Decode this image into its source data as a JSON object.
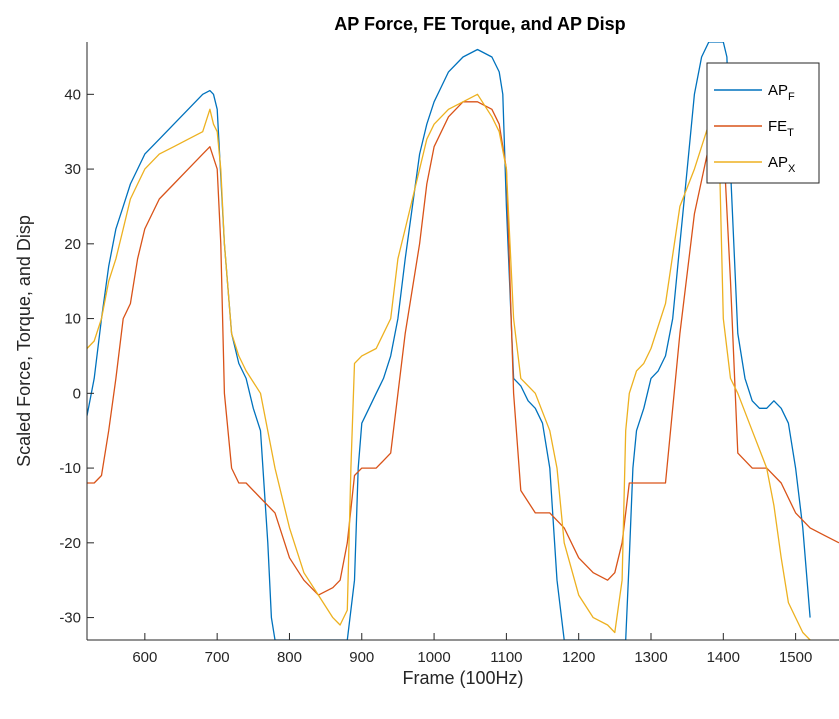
{
  "chart_data": {
    "type": "line",
    "title": "AP Force, FE Torque, and AP Disp",
    "xlabel": "Frame (100Hz)",
    "ylabel": "Scaled Force, Torque, and Disp",
    "xlim": [
      520,
      1560
    ],
    "ylim": [
      -33,
      47
    ],
    "xticks": [
      600,
      700,
      800,
      900,
      1000,
      1100,
      1200,
      1300,
      1400,
      1500
    ],
    "yticks": [
      -30,
      -20,
      -10,
      0,
      10,
      20,
      30,
      40
    ],
    "grid": false,
    "legend_position": "top-right",
    "series": [
      {
        "name": "AP",
        "subscript": "F",
        "color": "#0072BD",
        "x": [
          520,
          530,
          540,
          550,
          560,
          570,
          580,
          590,
          600,
          620,
          640,
          660,
          680,
          690,
          695,
          700,
          710,
          720,
          730,
          740,
          750,
          760,
          770,
          775,
          780,
          880,
          890,
          895,
          900,
          910,
          920,
          930,
          940,
          950,
          960,
          970,
          980,
          990,
          1000,
          1010,
          1020,
          1040,
          1060,
          1080,
          1090,
          1095,
          1100,
          1110,
          1120,
          1130,
          1140,
          1150,
          1160,
          1170,
          1180,
          1265,
          1270,
          1275,
          1280,
          1290,
          1300,
          1310,
          1320,
          1330,
          1340,
          1350,
          1360,
          1370,
          1380,
          1400,
          1405,
          1410,
          1420,
          1430,
          1440,
          1450,
          1460,
          1470,
          1480,
          1490,
          1500,
          1510,
          1520
        ],
        "y": [
          -3,
          2,
          10,
          17,
          22,
          25,
          28,
          30,
          32,
          34,
          36,
          38,
          40,
          40.5,
          40,
          38,
          20,
          8,
          4,
          2,
          -2,
          -5,
          -20,
          -30,
          -33,
          -33,
          -25,
          -10,
          -4,
          -2,
          0,
          2,
          5,
          10,
          18,
          25,
          32,
          36,
          39,
          41,
          43,
          45,
          46,
          45,
          43,
          40,
          25,
          2,
          1,
          -1,
          -2,
          -4,
          -10,
          -25,
          -33,
          -33,
          -22,
          -10,
          -5,
          -2,
          2,
          3,
          5,
          10,
          20,
          30,
          40,
          45,
          47,
          47,
          45,
          30,
          8,
          2,
          -1,
          -2,
          -2,
          -1,
          -2,
          -4,
          -10,
          -18,
          -30
        ]
      },
      {
        "name": "FE",
        "subscript": "T",
        "color": "#D95319",
        "x": [
          520,
          530,
          540,
          550,
          560,
          570,
          580,
          590,
          600,
          620,
          640,
          660,
          680,
          690,
          700,
          705,
          710,
          720,
          730,
          740,
          760,
          780,
          800,
          820,
          840,
          860,
          870,
          880,
          890,
          900,
          920,
          940,
          960,
          980,
          990,
          1000,
          1020,
          1040,
          1060,
          1080,
          1090,
          1100,
          1110,
          1120,
          1140,
          1160,
          1180,
          1200,
          1220,
          1240,
          1250,
          1260,
          1270,
          1280,
          1290,
          1300,
          1320,
          1340,
          1360,
          1380,
          1390,
          1400,
          1410,
          1420,
          1440,
          1460,
          1480,
          1500,
          1520,
          1540,
          1560
        ],
        "y": [
          -12,
          -12,
          -11,
          -5,
          2,
          10,
          12,
          18,
          22,
          26,
          28,
          30,
          32,
          33,
          30,
          20,
          0,
          -10,
          -12,
          -12,
          -14,
          -16,
          -22,
          -25,
          -27,
          -26,
          -25,
          -20,
          -11,
          -10,
          -10,
          -8,
          8,
          20,
          28,
          33,
          37,
          39,
          39,
          38,
          36,
          30,
          0,
          -13,
          -16,
          -16,
          -18,
          -22,
          -24,
          -25,
          -24,
          -20,
          -12,
          -12,
          -12,
          -12,
          -12,
          8,
          24,
          33,
          36,
          34,
          15,
          -8,
          -10,
          -10,
          -12,
          -16,
          -18,
          -19,
          -20
        ]
      },
      {
        "name": "AP",
        "subscript": "X",
        "color": "#EDB120",
        "x": [
          520,
          530,
          540,
          550,
          560,
          570,
          580,
          590,
          600,
          620,
          640,
          660,
          680,
          690,
          695,
          700,
          705,
          710,
          720,
          730,
          740,
          760,
          780,
          800,
          820,
          840,
          860,
          870,
          880,
          885,
          890,
          900,
          920,
          940,
          950,
          960,
          980,
          990,
          1000,
          1020,
          1040,
          1060,
          1080,
          1090,
          1100,
          1110,
          1120,
          1140,
          1160,
          1170,
          1180,
          1200,
          1220,
          1240,
          1250,
          1260,
          1265,
          1270,
          1280,
          1290,
          1300,
          1320,
          1340,
          1360,
          1380,
          1390,
          1395,
          1400,
          1410,
          1420,
          1440,
          1460,
          1470,
          1480,
          1490,
          1500,
          1510,
          1520
        ],
        "y": [
          6,
          7,
          10,
          15,
          18,
          22,
          26,
          28,
          30,
          32,
          33,
          34,
          35,
          38,
          36,
          35,
          30,
          20,
          8,
          5,
          3,
          0,
          -10,
          -18,
          -24,
          -27,
          -30,
          -31,
          -29,
          -10,
          4,
          5,
          6,
          10,
          18,
          22,
          30,
          34,
          36,
          38,
          39,
          40,
          37,
          35,
          30,
          10,
          2,
          0,
          -5,
          -10,
          -20,
          -27,
          -30,
          -31,
          -32,
          -25,
          -5,
          0,
          3,
          4,
          6,
          12,
          25,
          30,
          36,
          38,
          30,
          10,
          2,
          0,
          -5,
          -10,
          -15,
          -22,
          -28,
          -30,
          -32,
          -33
        ]
      }
    ]
  }
}
